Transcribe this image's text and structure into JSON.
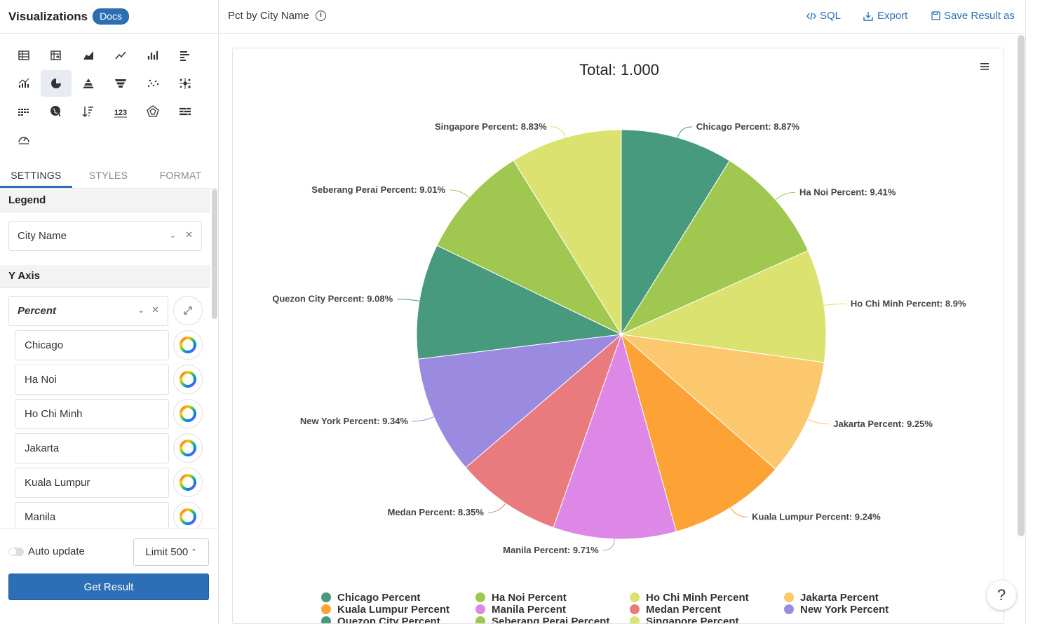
{
  "panel": {
    "title": "Visualizations",
    "docs_label": "Docs"
  },
  "viz_types": [
    "table-icon",
    "pivot-table-icon",
    "area-chart-icon",
    "line-chart-icon",
    "column-chart-icon",
    "bar-chart-icon",
    "combo-chart-icon",
    "pie-chart-icon",
    "pyramid-chart-icon",
    "funnel-chart-icon",
    "scatter-chart-icon",
    "bubble-chart-icon",
    "heatmap-icon",
    "geo-map-icon",
    "sorted-bar-icon",
    "number-card-icon",
    "radar-chart-icon",
    "progress-bar-icon",
    "gauge-icon"
  ],
  "active_viz": "pie-chart-icon",
  "tabs": [
    "SETTINGS",
    "STYLES",
    "FORMAT"
  ],
  "active_tab": "SETTINGS",
  "settings": {
    "legend_label": "Legend",
    "legend_value": "City Name",
    "yaxis_label": "Y Axis",
    "yaxis_value": "Percent",
    "items": [
      "Chicago",
      "Ha Noi",
      "Ho Chi Minh",
      "Jakarta",
      "Kuala Lumpur",
      "Manila"
    ]
  },
  "footer": {
    "auto_update": "Auto update",
    "limit": "Limit 500",
    "get_result": "Get Result"
  },
  "topbar": {
    "chart_name": "Pct by City Name",
    "sql": "SQL",
    "export": "Export",
    "save": "Save Result as"
  },
  "help": "?",
  "chart_data": {
    "type": "pie",
    "title": "Total: 1.000",
    "series_suffix": "Percent",
    "slices": [
      {
        "name": "Chicago",
        "value": 8.87,
        "color": "#479a7e"
      },
      {
        "name": "Ha Noi",
        "value": 9.41,
        "color": "#a0c850"
      },
      {
        "name": "Ho Chi Minh",
        "value": 8.9,
        "color": "#dbe26f"
      },
      {
        "name": "Jakarta",
        "value": 9.25,
        "color": "#fbc86e"
      },
      {
        "name": "Kuala Lumpur",
        "value": 9.24,
        "color": "#fda336"
      },
      {
        "name": "Manila",
        "value": 9.71,
        "color": "#dd87e6"
      },
      {
        "name": "Medan",
        "value": 8.35,
        "color": "#e97a7e"
      },
      {
        "name": "New York",
        "value": 9.34,
        "color": "#9a8be1"
      },
      {
        "name": "Quezon City",
        "value": 9.08,
        "color": "#479a7e"
      },
      {
        "name": "Seberang Perai",
        "value": 9.01,
        "color": "#a0c850"
      },
      {
        "name": "Singapore",
        "value": 8.83,
        "color": "#dbe26f"
      }
    ],
    "legend_placement": "bottom"
  }
}
